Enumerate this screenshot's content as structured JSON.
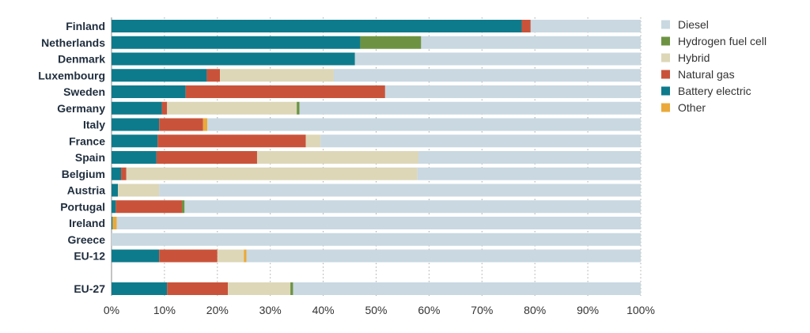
{
  "chart_data": {
    "type": "bar",
    "orientation": "horizontal",
    "stacked": true,
    "categories": [
      "Finland",
      "Netherlands",
      "Denmark",
      "Luxembourg",
      "Sweden",
      "Germany",
      "Italy",
      "France",
      "Spain",
      "Belgium",
      "Austria",
      "Portugal",
      "Ireland",
      "Greece",
      "EU-12",
      "EU-27"
    ],
    "series": [
      {
        "name": "Battery electric",
        "color": "#0e7b8c",
        "values": [
          77.5,
          47,
          46,
          18,
          14,
          9.5,
          9,
          8.7,
          8.5,
          1.8,
          1.2,
          0.8,
          0.2,
          0,
          9,
          10.5
        ]
      },
      {
        "name": "Natural gas",
        "color": "#c9533a",
        "values": [
          1.7,
          0,
          0,
          2.5,
          37.7,
          1.0,
          8.3,
          28,
          19,
          1.0,
          0,
          12.5,
          0,
          0,
          11,
          11.5
        ]
      },
      {
        "name": "Hybrid",
        "color": "#ddd7b8",
        "values": [
          0,
          0,
          0,
          21.5,
          0,
          24.5,
          0,
          2.8,
          30.5,
          55,
          7.8,
          0,
          0,
          0,
          5,
          11.8
        ]
      },
      {
        "name": "Hydrogen fuel cell",
        "color": "#6d9342",
        "values": [
          0,
          11.5,
          0,
          0,
          0,
          0.5,
          0,
          0,
          0,
          0,
          0,
          0.5,
          0,
          0,
          0,
          0.5
        ]
      },
      {
        "name": "Other",
        "color": "#eaa93a",
        "values": [
          0,
          0,
          0,
          0,
          0,
          0,
          0.8,
          0,
          0,
          0,
          0,
          0,
          0.8,
          0,
          0.5,
          0
        ]
      },
      {
        "name": "Diesel",
        "color": "#c9d8e1",
        "values": [
          20.8,
          41.5,
          54,
          58,
          48.3,
          64.5,
          81.9,
          60.5,
          42,
          42.2,
          91,
          86.2,
          99,
          100,
          74.5,
          65.7
        ]
      }
    ],
    "legend_order": [
      "Diesel",
      "Hydrogen fuel cell",
      "Hybrid",
      "Natural gas",
      "Battery electric",
      "Other"
    ],
    "x_ticks": [
      "0%",
      "10%",
      "20%",
      "30%",
      "40%",
      "50%",
      "60%",
      "70%",
      "80%",
      "90%",
      "100%"
    ],
    "xlim": [
      0,
      100
    ],
    "grid": "vertical dotted",
    "legend_position": "right"
  }
}
